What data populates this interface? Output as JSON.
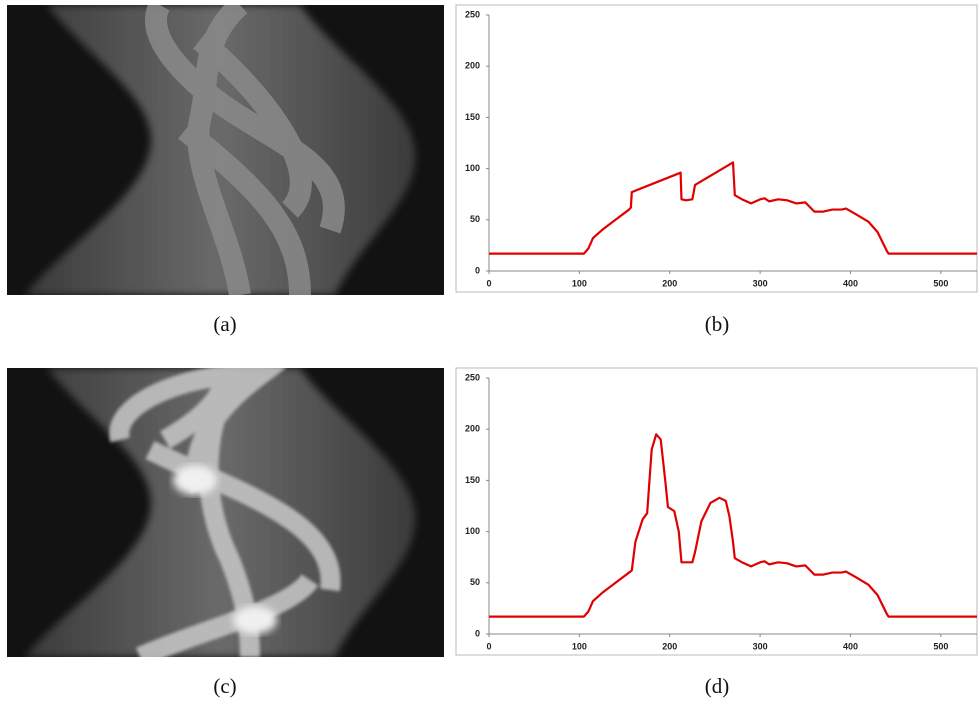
{
  "panels": [
    {
      "caption": "(a)"
    },
    {
      "caption": "(b)"
    },
    {
      "caption": "(c)"
    },
    {
      "caption": "(d)"
    }
  ],
  "chart_data": [
    {
      "type": "line",
      "x": [
        0,
        105,
        110,
        115,
        125,
        140,
        155,
        157,
        158,
        212,
        213,
        218,
        225,
        228,
        270,
        272,
        280,
        290,
        300,
        305,
        310,
        320,
        330,
        340,
        350,
        360,
        370,
        380,
        390,
        395,
        405,
        420,
        430,
        440,
        442,
        540
      ],
      "series": [
        {
          "color": "#e00000",
          "values": [
            17,
            17,
            22,
            32,
            40,
            50,
            60,
            62,
            77,
            96,
            70,
            69,
            70,
            84,
            106,
            74,
            70,
            66,
            70,
            71,
            68,
            70,
            69,
            66,
            67,
            58,
            58,
            60,
            60,
            61,
            56,
            48,
            38,
            20,
            17,
            17
          ]
        }
      ],
      "xlim": [
        0,
        540
      ],
      "ylim": [
        0,
        250
      ],
      "xticks": [
        0,
        100,
        200,
        300,
        400,
        500
      ],
      "yticks": [
        0,
        50,
        100,
        150,
        200,
        250
      ]
    },
    {
      "type": "line",
      "x": [
        0,
        105,
        110,
        115,
        125,
        140,
        155,
        158,
        162,
        170,
        175,
        180,
        185,
        190,
        195,
        198,
        205,
        210,
        213,
        225,
        228,
        235,
        245,
        255,
        262,
        266,
        270,
        272,
        280,
        290,
        300,
        305,
        310,
        320,
        330,
        340,
        350,
        360,
        370,
        380,
        390,
        395,
        405,
        420,
        430,
        440,
        442,
        540
      ],
      "series": [
        {
          "color": "#e00000",
          "values": [
            17,
            17,
            22,
            32,
            40,
            50,
            60,
            62,
            90,
            112,
            118,
            180,
            195,
            190,
            150,
            124,
            120,
            100,
            70,
            70,
            80,
            110,
            128,
            133,
            130,
            115,
            90,
            74,
            70,
            66,
            70,
            71,
            68,
            70,
            69,
            66,
            67,
            58,
            58,
            60,
            60,
            61,
            56,
            48,
            38,
            20,
            17,
            17
          ]
        }
      ],
      "xlim": [
        0,
        540
      ],
      "ylim": [
        0,
        250
      ],
      "xticks": [
        0,
        100,
        200,
        300,
        400,
        500
      ],
      "yticks": [
        0,
        50,
        100,
        150,
        200,
        250
      ]
    }
  ]
}
